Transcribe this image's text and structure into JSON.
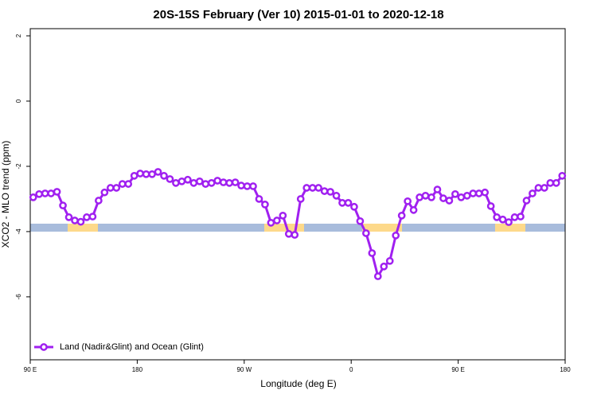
{
  "chart_data": {
    "type": "line",
    "title": "20S-15S February (Ver 10)   2015-01-01 to 2020-12-18",
    "x_label": "Longitude (deg E)",
    "y_label": "XCO2 - MLO trend (ppm)",
    "x": [
      92.5,
      97.5,
      102.5,
      107.5,
      112.5,
      117.5,
      122.5,
      127.5,
      132.5,
      137.5,
      142.5,
      147.5,
      152.5,
      157.5,
      162.5,
      167.5,
      172.5,
      177.5,
      182.5,
      187.5,
      192.5,
      197.5,
      202.5,
      207.5,
      212.5,
      217.5,
      222.5,
      227.5,
      232.5,
      237.5,
      242.5,
      247.5,
      252.5,
      257.5,
      262.5,
      267.5,
      272.5,
      277.5,
      282.5,
      287.5,
      292.5,
      297.5,
      302.5,
      307.5,
      312.5,
      317.5,
      322.5,
      327.5,
      332.5,
      337.5,
      342.5,
      347.5,
      352.5,
      357.5,
      362.5,
      367.5,
      372.5,
      377.5,
      382.5,
      387.5,
      392.5,
      397.5,
      402.5,
      407.5,
      412.5,
      417.5,
      422.5,
      427.5,
      432.5,
      437.5,
      442.5,
      447.5,
      452.5,
      457.5,
      462.5,
      467.5,
      472.5,
      477.5,
      482.5,
      487.5,
      492.5,
      497.5,
      502.5,
      507.5,
      512.5,
      517.5,
      522.5,
      527.5,
      532.5,
      537.5
    ],
    "series": [
      {
        "name": "Land (Nadir&Glint) and Ocean (Glint)",
        "color": "#a020f0",
        "values": [
          -2.95,
          -2.85,
          -2.83,
          -2.83,
          -2.78,
          -3.2,
          -3.56,
          -3.66,
          -3.7,
          -3.56,
          -3.54,
          -3.05,
          -2.8,
          -2.66,
          -2.66,
          -2.54,
          -2.54,
          -2.29,
          -2.22,
          -2.24,
          -2.24,
          -2.17,
          -2.29,
          -2.39,
          -2.51,
          -2.46,
          -2.41,
          -2.51,
          -2.46,
          -2.54,
          -2.51,
          -2.44,
          -2.49,
          -2.51,
          -2.49,
          -2.59,
          -2.61,
          -2.61,
          -3.0,
          -3.17,
          -3.73,
          -3.66,
          -3.51,
          -4.07,
          -4.1,
          -3.0,
          -2.66,
          -2.66,
          -2.66,
          -2.76,
          -2.78,
          -2.9,
          -3.12,
          -3.12,
          -3.24,
          -3.68,
          -4.05,
          -4.66,
          -5.37,
          -5.07,
          -4.9,
          -4.12,
          -3.51,
          -3.07,
          -3.34,
          -2.95,
          -2.9,
          -2.95,
          -2.71,
          -2.98,
          -3.05,
          -2.85,
          -2.95,
          -2.9,
          -2.83,
          -2.83,
          -2.8,
          -3.22,
          -3.56,
          -3.63,
          -3.71,
          -3.56,
          -3.54,
          -3.05,
          -2.83,
          -2.66,
          -2.66,
          -2.51,
          -2.51,
          -2.29
        ]
      }
    ],
    "xlim": [
      90,
      540
    ],
    "xticks": [
      {
        "value": 90,
        "label": "90 E"
      },
      180,
      {
        "value": 270,
        "label": "90 W"
      },
      {
        "value": 360,
        "label": "0"
      },
      {
        "value": 450,
        "label": "90 E"
      },
      {
        "value": 540,
        "label": "180"
      }
    ],
    "ylim": [
      -7.93,
      2.22
    ],
    "yticks": [
      2,
      0,
      -2,
      -4,
      -6
    ],
    "legend": "bottom-left"
  }
}
